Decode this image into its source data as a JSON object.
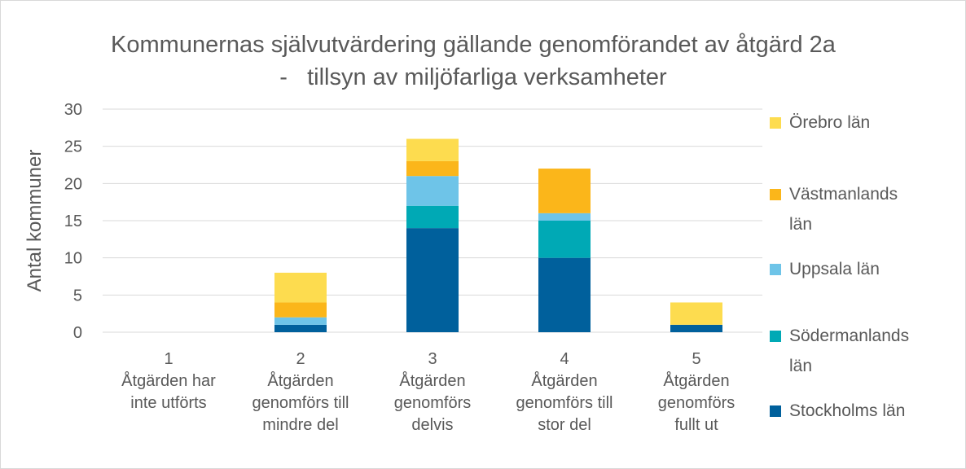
{
  "chart_data": {
    "type": "stacked-bar",
    "title": "Kommunernas självutvärdering gällande genomförandet av åtgärd 2a -   tillsyn av miljöfarliga verksamheter",
    "y_label": "Antal kommuner",
    "categories": [
      [
        "1",
        "Åtgärden har",
        "inte utförts"
      ],
      [
        "2",
        "Åtgärden",
        "genomförs till",
        "mindre del"
      ],
      [
        "3",
        "Åtgärden",
        "genomförs",
        "delvis"
      ],
      [
        "4",
        "Åtgärden",
        "genomförs till",
        "stor del"
      ],
      [
        "5",
        "Åtgärden",
        "genomförs",
        "fullt ut"
      ]
    ],
    "series": [
      {
        "name": "Stockholms län",
        "color": "#00609c",
        "values": [
          0,
          1,
          14,
          10,
          1
        ]
      },
      {
        "name": "Södermanlands län",
        "color": "#00a9b5",
        "values": [
          0,
          0,
          3,
          5,
          0
        ]
      },
      {
        "name": "Uppsala län",
        "color": "#6ec4e8",
        "values": [
          0,
          1,
          4,
          1,
          0
        ]
      },
      {
        "name": "Västmanlands län",
        "color": "#fbb61a",
        "values": [
          0,
          2,
          2,
          6,
          0
        ]
      },
      {
        "name": "Örebro län",
        "color": "#fddc4f",
        "values": [
          0,
          4,
          3,
          0,
          3
        ]
      }
    ],
    "ylim": [
      0,
      30
    ],
    "yticks": [
      0,
      5,
      10,
      15,
      20,
      25,
      30
    ],
    "grid": true,
    "legend": "right"
  }
}
